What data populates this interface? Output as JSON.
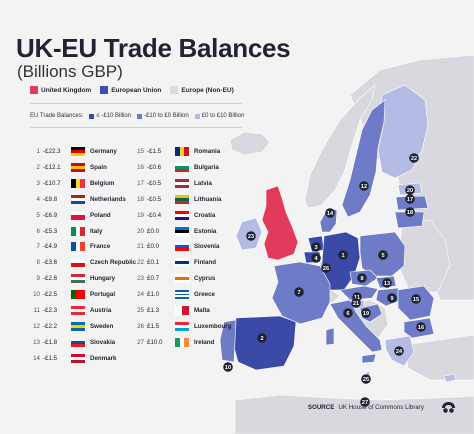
{
  "title": "UK-EU Trade Balances",
  "subtitle": "(Billions GBP)",
  "legend": {
    "items": [
      {
        "label": "United Kingdom",
        "color": "#e23a5a"
      },
      {
        "label": "European Union",
        "color": "#3f4fae"
      },
      {
        "label": "Europe (Non-EU)",
        "color": "#dcdce2"
      }
    ]
  },
  "balances_legend": {
    "label": "EU Trade Balances:",
    "items": [
      {
        "label": "≤ -£10 Billion",
        "color": "#3c4aa7"
      },
      {
        "label": "-£10 to £0 Billion",
        "color": "#6e7cc8"
      },
      {
        "label": "£0 to £10 Billion",
        "color": "#b4bce6"
      }
    ]
  },
  "rankings": [
    {
      "rank": "1",
      "value": "-£22.3",
      "country": "Germany",
      "flag": [
        "#000000",
        "#dd0000",
        "#ffce00"
      ],
      "flag_dir": "h"
    },
    {
      "rank": "2",
      "value": "-£12.1",
      "country": "Spain",
      "flag": [
        "#c60b1e",
        "#ffc400",
        "#c60b1e"
      ],
      "flag_dir": "h"
    },
    {
      "rank": "3",
      "value": "-£10.7",
      "country": "Belgium",
      "flag": [
        "#000000",
        "#fdda24",
        "#ef3340"
      ],
      "flag_dir": "v"
    },
    {
      "rank": "4",
      "value": "-£9.8",
      "country": "Netherlands",
      "flag": [
        "#ae1c28",
        "#ffffff",
        "#21468b"
      ],
      "flag_dir": "h"
    },
    {
      "rank": "5",
      "value": "-£6.9",
      "country": "Poland",
      "flag": [
        "#ffffff",
        "#dc143c"
      ],
      "flag_dir": "h"
    },
    {
      "rank": "6",
      "value": "-£5.3",
      "country": "Italy",
      "flag": [
        "#009246",
        "#ffffff",
        "#ce2b37"
      ],
      "flag_dir": "v"
    },
    {
      "rank": "7",
      "value": "-£4.9",
      "country": "France",
      "flag": [
        "#0055a4",
        "#ffffff",
        "#ef4135"
      ],
      "flag_dir": "v"
    },
    {
      "rank": "8",
      "value": "-£3.6",
      "country": "Czech Republic",
      "flag": [
        "#ffffff",
        "#d7141a"
      ],
      "flag_dir": "h"
    },
    {
      "rank": "9",
      "value": "-£2.6",
      "country": "Hungary",
      "flag": [
        "#ce2939",
        "#ffffff",
        "#477050"
      ],
      "flag_dir": "h"
    },
    {
      "rank": "10",
      "value": "-£2.5",
      "country": "Portugal",
      "flag": [
        "#006600",
        "#ff0000",
        "#ff0000"
      ],
      "flag_dir": "v"
    },
    {
      "rank": "11",
      "value": "-£2.3",
      "country": "Austria",
      "flag": [
        "#ed2939",
        "#ffffff",
        "#ed2939"
      ],
      "flag_dir": "h"
    },
    {
      "rank": "12",
      "value": "-£2.2",
      "country": "Sweden",
      "flag": [
        "#006aa7",
        "#fecc00",
        "#006aa7"
      ],
      "flag_dir": "h"
    },
    {
      "rank": "13",
      "value": "-£1.8",
      "country": "Slovakia",
      "flag": [
        "#ffffff",
        "#0b4ea2",
        "#ee1c25"
      ],
      "flag_dir": "h"
    },
    {
      "rank": "14",
      "value": "-£1.5",
      "country": "Denmark",
      "flag": [
        "#c8102e",
        "#ffffff",
        "#c8102e"
      ],
      "flag_dir": "h"
    },
    {
      "rank": "15",
      "value": "-£1.5",
      "country": "Romania",
      "flag": [
        "#002b7f",
        "#fcd116",
        "#ce1126"
      ],
      "flag_dir": "v"
    },
    {
      "rank": "16",
      "value": "-£0.6",
      "country": "Bulgaria",
      "flag": [
        "#ffffff",
        "#00966e",
        "#d62612"
      ],
      "flag_dir": "h"
    },
    {
      "rank": "17",
      "value": "-£0.5",
      "country": "Latvia",
      "flag": [
        "#9e3039",
        "#ffffff",
        "#9e3039"
      ],
      "flag_dir": "h"
    },
    {
      "rank": "18",
      "value": "-£0.5",
      "country": "Lithuania",
      "flag": [
        "#fdb913",
        "#006a44",
        "#c1272d"
      ],
      "flag_dir": "h"
    },
    {
      "rank": "19",
      "value": "-£0.4",
      "country": "Croatia",
      "flag": [
        "#ff0000",
        "#ffffff",
        "#171796"
      ],
      "flag_dir": "h"
    },
    {
      "rank": "20",
      "value": "£0.0",
      "country": "Estonia",
      "flag": [
        "#0072ce",
        "#000000",
        "#ffffff"
      ],
      "flag_dir": "h"
    },
    {
      "rank": "21",
      "value": "£0.0",
      "country": "Slovenia",
      "flag": [
        "#ffffff",
        "#005ce5",
        "#ff0000"
      ],
      "flag_dir": "h"
    },
    {
      "rank": "22",
      "value": "£0.1",
      "country": "Finland",
      "flag": [
        "#ffffff",
        "#003580",
        "#ffffff"
      ],
      "flag_dir": "h"
    },
    {
      "rank": "23",
      "value": "£0.7",
      "country": "Cyprus",
      "flag": [
        "#ffffff",
        "#d57800",
        "#ffffff"
      ],
      "flag_dir": "h"
    },
    {
      "rank": "24",
      "value": "£1.0",
      "country": "Greece",
      "flag": [
        "#0d5eaf",
        "#ffffff",
        "#0d5eaf",
        "#ffffff",
        "#0d5eaf"
      ],
      "flag_dir": "h"
    },
    {
      "rank": "25",
      "value": "£1.3",
      "country": "Malta",
      "flag": [
        "#ffffff",
        "#cf142b"
      ],
      "flag_dir": "v"
    },
    {
      "rank": "26",
      "value": "£1.5",
      "country": "Luxembourg",
      "flag": [
        "#ed2939",
        "#ffffff",
        "#00a1de"
      ],
      "flag_dir": "h"
    },
    {
      "rank": "27",
      "value": "£10.0",
      "country": "Ireland",
      "flag": [
        "#169b62",
        "#ffffff",
        "#ff883e"
      ],
      "flag_dir": "v"
    }
  ],
  "map": {
    "colors": {
      "uk": "#e23a5a",
      "dark": "#3c4aa7",
      "mid": "#6e7cc8",
      "light": "#b4bce6",
      "nonEU": "#d8d8de",
      "badge": "#1f2430"
    },
    "badges": [
      "1",
      "2",
      "3",
      "4",
      "5",
      "6",
      "7",
      "8",
      "9",
      "10",
      "11",
      "12",
      "13",
      "14",
      "15",
      "16",
      "17",
      "18",
      "19",
      "20",
      "21",
      "22",
      "23",
      "24",
      "25",
      "26",
      "27"
    ]
  },
  "source": {
    "label": "SOURCE",
    "text": "UK House of Commons Library"
  },
  "logo_icon": "visual-capitalist-logo-icon"
}
